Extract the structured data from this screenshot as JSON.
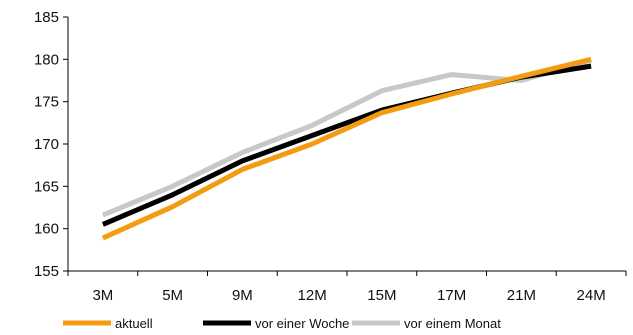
{
  "chart_data": {
    "type": "line",
    "categories": [
      "3M",
      "5M",
      "9M",
      "12M",
      "15M",
      "17M",
      "21M",
      "24M"
    ],
    "ylim": [
      155,
      185
    ],
    "yticks": [
      155,
      160,
      165,
      170,
      175,
      180,
      185
    ],
    "grid": false,
    "legend_position": "bottom",
    "series": [
      {
        "name": "aktuell",
        "color": "#F39C12",
        "values": [
          158.9,
          162.6,
          167.0,
          170.0,
          173.7,
          175.9,
          178.0,
          180.0
        ]
      },
      {
        "name": "vor einer Woche",
        "color": "#000000",
        "values": [
          160.5,
          164.0,
          168.0,
          171.0,
          174.0,
          176.0,
          177.9,
          179.2
        ]
      },
      {
        "name": "vor einem Monat",
        "color": "#C8C8C8",
        "values": [
          161.6,
          165.0,
          169.0,
          172.2,
          176.3,
          178.2,
          177.5,
          179.9
        ]
      }
    ]
  }
}
